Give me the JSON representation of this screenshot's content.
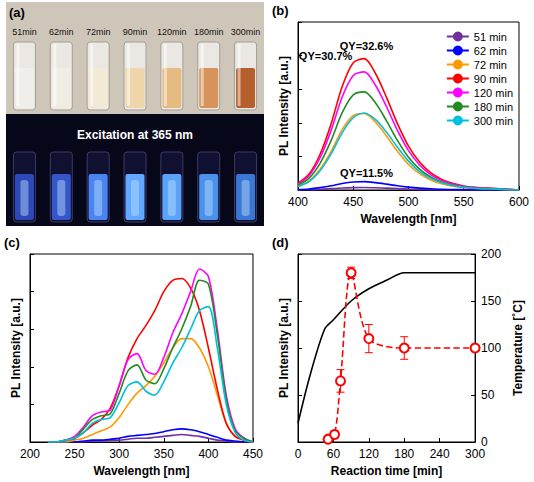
{
  "photo": {
    "panel": "(a)",
    "vial_labels": [
      "51min",
      "62min",
      "72min",
      "90min",
      "120min",
      "180min",
      "300min"
    ],
    "caption": "Excitation at 365 nm"
  },
  "chart_data": [
    {
      "panel": "(b)",
      "type": "line",
      "x_label": "Wavelength [nm]",
      "y_label": "PL Intensity [a.u.]",
      "xlim": [
        400,
        600
      ],
      "xticks": [
        400,
        450,
        500,
        550,
        600
      ],
      "ylim": [
        0,
        1
      ],
      "tick_labels": "x",
      "legend": "top-right",
      "x": [
        400,
        410,
        420,
        430,
        440,
        450,
        460,
        470,
        480,
        490,
        500,
        510,
        520,
        530,
        540,
        550,
        560,
        570,
        580,
        590,
        600
      ],
      "series": [
        {
          "name": "51 min",
          "color": "#7030a0",
          "values": [
            0.001,
            0.002,
            0.004,
            0.008,
            0.012,
            0.014,
            0.015,
            0.013,
            0.011,
            0.008,
            0.005,
            0.003,
            0.002,
            0.001,
            0.001,
            0,
            0,
            0,
            0,
            0,
            0
          ]
        },
        {
          "name": "62 min",
          "color": "#0000ff",
          "values": [
            0.003,
            0.006,
            0.014,
            0.025,
            0.039,
            0.048,
            0.05,
            0.044,
            0.035,
            0.025,
            0.017,
            0.011,
            0.007,
            0.004,
            0.003,
            0.002,
            0.001,
            0.001,
            0,
            0,
            0
          ]
        },
        {
          "name": "72 min",
          "color": "#ff9900",
          "values": [
            0.023,
            0.055,
            0.124,
            0.23,
            0.359,
            0.442,
            0.455,
            0.405,
            0.322,
            0.23,
            0.152,
            0.097,
            0.06,
            0.037,
            0.023,
            0.014,
            0.009,
            0.007,
            0.005,
            0.002,
            0
          ]
        },
        {
          "name": "90 min",
          "color": "#ff0000",
          "values": [
            0.04,
            0.095,
            0.213,
            0.395,
            0.616,
            0.758,
            0.782,
            0.695,
            0.553,
            0.395,
            0.261,
            0.166,
            0.103,
            0.063,
            0.04,
            0.024,
            0.016,
            0.012,
            0.008,
            0.004,
            0
          ]
        },
        {
          "name": "120 min",
          "color": "#ff00ff",
          "values": [
            0.036,
            0.085,
            0.192,
            0.355,
            0.554,
            0.682,
            0.703,
            0.625,
            0.497,
            0.355,
            0.234,
            0.149,
            0.092,
            0.057,
            0.036,
            0.021,
            0.014,
            0.011,
            0.007,
            0.004,
            0
          ]
        },
        {
          "name": "180 min",
          "color": "#228b22",
          "values": [
            0.03,
            0.071,
            0.159,
            0.295,
            0.46,
            0.566,
            0.584,
            0.519,
            0.413,
            0.295,
            0.195,
            0.124,
            0.077,
            0.047,
            0.03,
            0.018,
            0.012,
            0.009,
            0.006,
            0.003,
            0
          ]
        },
        {
          "name": "300 min",
          "color": "#00c0e0",
          "values": [
            0.02,
            0.05,
            0.115,
            0.215,
            0.34,
            0.43,
            0.458,
            0.42,
            0.345,
            0.255,
            0.172,
            0.11,
            0.07,
            0.043,
            0.027,
            0.016,
            0.01,
            0.007,
            0.005,
            0.002,
            0
          ]
        }
      ],
      "annotations": [
        {
          "text": "QY=32.6%",
          "x": 462,
          "y": 0.86
        },
        {
          "text": "QY=30.7%",
          "x": 425,
          "y": 0.8
        },
        {
          "text": "QY=11.5%",
          "x": 462,
          "y": 0.1
        }
      ]
    },
    {
      "panel": "(c)",
      "type": "line",
      "x_label": "Wavelength [nm]",
      "y_label": "PL Intensity [a.u.]",
      "xlim": [
        200,
        450
      ],
      "xticks": [
        200,
        250,
        300,
        350,
        400,
        450
      ],
      "ylim": [
        0,
        1
      ],
      "tick_labels": "x",
      "x": [
        220,
        230,
        240,
        250,
        260,
        270,
        280,
        290,
        300,
        310,
        320,
        330,
        340,
        350,
        360,
        370,
        380,
        390,
        400,
        410,
        420,
        430,
        440,
        450
      ],
      "series": [
        {
          "color": "#7030a0",
          "values": [
            0,
            0,
            0,
            0,
            0,
            0.005,
            0.005,
            0.01,
            0.01,
            0.015,
            0.02,
            0.02,
            0.025,
            0.03,
            0.035,
            0.04,
            0.035,
            0.03,
            0.02,
            0.01,
            0.005,
            0,
            0,
            0
          ]
        },
        {
          "color": "#0000ff",
          "values": [
            0,
            0,
            0,
            0,
            0.005,
            0.01,
            0.01,
            0.015,
            0.02,
            0.03,
            0.035,
            0.04,
            0.045,
            0.055,
            0.065,
            0.07,
            0.065,
            0.055,
            0.04,
            0.025,
            0.01,
            0.005,
            0,
            0
          ]
        },
        {
          "color": "#ff9900",
          "values": [
            0,
            0,
            0,
            0.01,
            0.02,
            0.04,
            0.06,
            0.08,
            0.13,
            0.2,
            0.26,
            0.3,
            0.35,
            0.42,
            0.5,
            0.55,
            0.55,
            0.5,
            0.4,
            0.25,
            0.1,
            0.03,
            0.01,
            0
          ]
        },
        {
          "color": "#ff0000",
          "values": [
            0,
            0,
            0.01,
            0.02,
            0.05,
            0.09,
            0.12,
            0.18,
            0.3,
            0.45,
            0.55,
            0.62,
            0.7,
            0.8,
            0.86,
            0.87,
            0.82,
            0.7,
            0.5,
            0.28,
            0.1,
            0.03,
            0.01,
            0
          ]
        },
        {
          "color": "#ff00ff",
          "values": [
            0,
            0,
            0.01,
            0.03,
            0.08,
            0.14,
            0.16,
            0.17,
            0.3,
            0.44,
            0.47,
            0.38,
            0.36,
            0.45,
            0.58,
            0.68,
            0.8,
            0.92,
            0.88,
            0.6,
            0.25,
            0.07,
            0.02,
            0
          ]
        },
        {
          "color": "#228b22",
          "values": [
            0,
            0,
            0.01,
            0.02,
            0.07,
            0.12,
            0.14,
            0.15,
            0.26,
            0.38,
            0.41,
            0.33,
            0.31,
            0.39,
            0.5,
            0.6,
            0.72,
            0.86,
            0.84,
            0.57,
            0.23,
            0.06,
            0.02,
            0
          ]
        },
        {
          "color": "#00c0e0",
          "values": [
            0,
            0,
            0.01,
            0.02,
            0.05,
            0.1,
            0.12,
            0.13,
            0.21,
            0.3,
            0.32,
            0.27,
            0.25,
            0.32,
            0.42,
            0.5,
            0.6,
            0.7,
            0.72,
            0.5,
            0.2,
            0.05,
            0.01,
            0
          ]
        }
      ]
    },
    {
      "panel": "(d)",
      "type": "line",
      "x_label": "Reaction time [min]",
      "y_label": "PL Intensity [a.u.]",
      "y2_label": "Temperature [˚C]",
      "xlim": [
        0,
        300
      ],
      "xticks": [
        0,
        60,
        120,
        180,
        240,
        300
      ],
      "ylim": [
        0,
        200
      ],
      "y2lim": [
        0,
        200
      ],
      "y2ticks": [
        0,
        50,
        100,
        150,
        200
      ],
      "series": [
        {
          "axis": "y2",
          "color": "#000000",
          "marker": "none",
          "line_style": "solid",
          "x": [
            0,
            20,
            45,
            60,
            90,
            120,
            150,
            180,
            240,
            300
          ],
          "values": [
            20,
            70,
            120,
            130,
            150,
            163,
            172,
            180,
            180,
            180
          ]
        },
        {
          "axis": "y",
          "color": "#ff0000",
          "marker": "open_circle",
          "line_style": "dashed",
          "x": [
            51,
            62,
            72,
            90,
            120,
            180,
            300
          ],
          "values": [
            3,
            8,
            65,
            180,
            110,
            100,
            100
          ],
          "error": [
            2,
            4,
            12,
            6,
            15,
            12,
            4
          ]
        }
      ]
    }
  ]
}
